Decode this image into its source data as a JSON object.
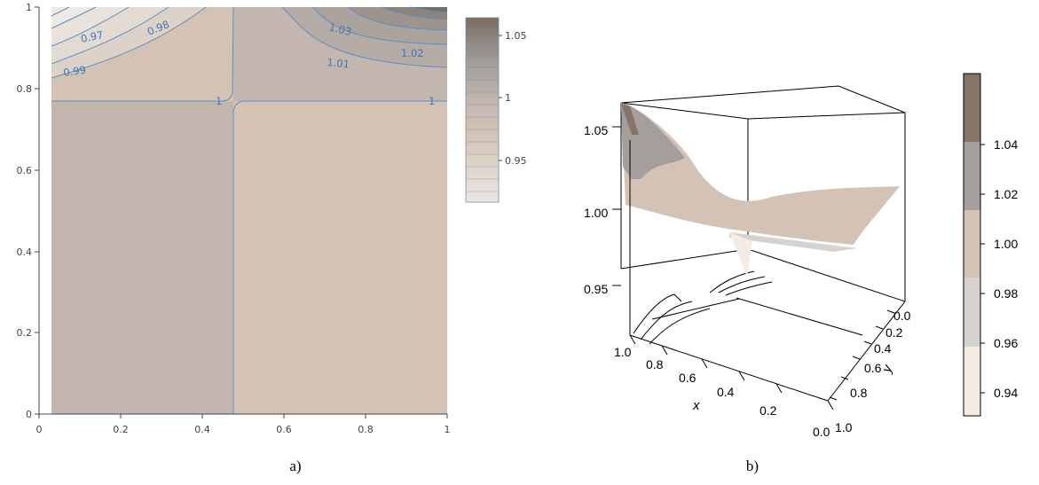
{
  "chart_data": [
    {
      "type": "contour",
      "panel_label": "a)",
      "xlim": [
        0,
        1
      ],
      "ylim": [
        0,
        1
      ],
      "x_ticks": [
        "0",
        "0.2",
        "0.4",
        "0.6",
        "0.8",
        "1"
      ],
      "y_ticks": [
        "0",
        "0.2",
        "0.4",
        "0.6",
        "0.8",
        "1"
      ],
      "contour_labels": [
        "0.97",
        "0.98",
        "0.99",
        "1",
        "1",
        "1.01",
        "1.02",
        "1.03"
      ],
      "colorbar": {
        "ticks": [
          "1.05",
          "1",
          "0.95"
        ],
        "range": [
          0.92,
          1.065
        ]
      },
      "colors": [
        "#7c6d62",
        "#a49e9d",
        "#c2b6ae",
        "#d4c3b4",
        "#ece6e2"
      ],
      "contour_color": "#5b8fc4"
    },
    {
      "type": "surface3d",
      "panel_label": "b)",
      "z_ticks": [
        "1.05",
        "1.00",
        "0.95"
      ],
      "x_ticks": [
        "1.0",
        "0.8",
        "0.6",
        "0.4",
        "0.2",
        "0.0"
      ],
      "y_ticks": [
        "0.0",
        "0.2",
        "0.4",
        "0.6",
        "0.8",
        "1.0"
      ],
      "xlabel": "x",
      "ylabel": "y",
      "colorbar": {
        "ticks": [
          "1.04",
          "1.02",
          "1.00",
          "0.98",
          "0.96",
          "0.94"
        ],
        "bands": [
          "#857467",
          "#a49e9d",
          "#d4c3b4",
          "#d6d2cf",
          "#f4ebe3"
        ]
      }
    }
  ]
}
